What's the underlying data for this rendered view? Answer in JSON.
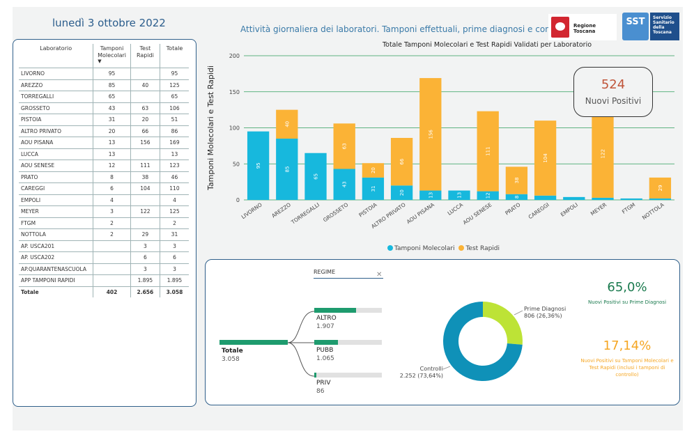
{
  "header": {
    "date": "lunedì 3 ottobre 2022",
    "subtitle": "Attività giornaliera dei laboratori. Tamponi effettuali, prime diagnosi e controlli",
    "logo_toscana_text": "Regione Toscana",
    "logo_sst_short": "SST",
    "logo_sst_lines": [
      "Servizio",
      "Sanitario",
      "della",
      "Toscana"
    ]
  },
  "colors": {
    "molecular": "#17b8dd",
    "rapid": "#fbb336",
    "grid": "#2e9e5b",
    "green": "#1e9b6e",
    "orange": "#f5a623",
    "donut_controlli": "#0f91b8",
    "donut_prime": "#bde336"
  },
  "table": {
    "headers": [
      "Laboratorio",
      "Tamponi Molecolari",
      "Test Rapidi",
      "Totale"
    ],
    "rows": [
      [
        "LIVORNO",
        "95",
        "",
        "95"
      ],
      [
        "AREZZO",
        "85",
        "40",
        "125"
      ],
      [
        "TORREGALLI",
        "65",
        "",
        "65"
      ],
      [
        "GROSSETO",
        "43",
        "63",
        "106"
      ],
      [
        "PISTOIA",
        "31",
        "20",
        "51"
      ],
      [
        "ALTRO PRIVATO",
        "20",
        "66",
        "86"
      ],
      [
        "AOU PISANA",
        "13",
        "156",
        "169"
      ],
      [
        "LUCCA",
        "13",
        "",
        "13"
      ],
      [
        "AOU SENESE",
        "12",
        "111",
        "123"
      ],
      [
        "PRATO",
        "8",
        "38",
        "46"
      ],
      [
        "CAREGGI",
        "6",
        "104",
        "110"
      ],
      [
        "EMPOLI",
        "4",
        "",
        "4"
      ],
      [
        "MEYER",
        "3",
        "122",
        "125"
      ],
      [
        "FTGM",
        "2",
        "",
        "2"
      ],
      [
        "NOTTOLA",
        "2",
        "29",
        "31"
      ],
      [
        "AP. USCA201",
        "",
        "3",
        "3"
      ],
      [
        "AP. USCA202",
        "",
        "6",
        "6"
      ],
      [
        "AP.QUARANTENASCUOLA",
        "",
        "3",
        "3"
      ],
      [
        "APP TAMPONI RAPIDI",
        "",
        "1.895",
        "1.895"
      ]
    ],
    "total": [
      "Totale",
      "402",
      "2.656",
      "3.058"
    ]
  },
  "chart_data": [
    {
      "type": "bar",
      "stacked": true,
      "title": "Totale Tamponi Molecolari e Test Rapidi Validati per Laboratorio",
      "xlabel": "",
      "ylabel": "Tamponi Molecolari e Test Rapidi",
      "ylim": [
        0,
        200
      ],
      "yticks": [
        0,
        50,
        100,
        150,
        200
      ],
      "grid": true,
      "legend_position": "bottom",
      "categories": [
        "LIVORNO",
        "AREZZO",
        "TORREGALLI",
        "GROSSETO",
        "PISTOIA",
        "ALTRO PRIVATO",
        "AOU PISANA",
        "LUCCA",
        "AOU SENESE",
        "PRATO",
        "CAREGGI",
        "EMPOLI",
        "MEYER",
        "FTGM",
        "NOTTOLA"
      ],
      "series": [
        {
          "name": "Tamponi Molecolari",
          "values": [
            95,
            85,
            65,
            43,
            31,
            20,
            13,
            13,
            12,
            8,
            6,
            4,
            3,
            2,
            2
          ],
          "labels": [
            "95",
            "85",
            "65",
            "43",
            "31",
            "20",
            "13",
            "13",
            "12",
            "8",
            "",
            "",
            "",
            "",
            ""
          ]
        },
        {
          "name": "Test Rapidi",
          "values": [
            0,
            40,
            0,
            63,
            20,
            66,
            156,
            0,
            111,
            38,
            104,
            0,
            122,
            0,
            29
          ],
          "labels": [
            "",
            "40",
            "",
            "63",
            "20",
            "66",
            "156",
            "",
            "111",
            "38",
            "104",
            "",
            "122",
            "",
            "29"
          ]
        }
      ]
    },
    {
      "type": "pie",
      "donut": true,
      "labels": [
        "Prime Diagnosi",
        "Controlli"
      ],
      "values": [
        806,
        2252
      ],
      "value_labels": [
        "806 (26,36%)",
        "2.252 (73,64%)"
      ]
    }
  ],
  "callout": {
    "value": "524",
    "label": "Nuovi Positivi"
  },
  "tree": {
    "header": "REGIME",
    "root": {
      "label": "Totale",
      "value": "3.058"
    },
    "children": [
      {
        "label": "ALTRO",
        "value": "1.907",
        "fraction": 0.62
      },
      {
        "label": "PUBB",
        "value": "1.065",
        "fraction": 0.35
      },
      {
        "label": "PRIV",
        "value": "86",
        "fraction": 0.03
      }
    ]
  },
  "kpi": [
    {
      "value": "65,0%",
      "label": "Nuovi Positivi su Prime Diagnosi"
    },
    {
      "value": "17,14%",
      "label": "Nuovi Positivi su Tamponi Molecolari e Test Rapidi (inclusi i tamponi di controllo)"
    }
  ]
}
